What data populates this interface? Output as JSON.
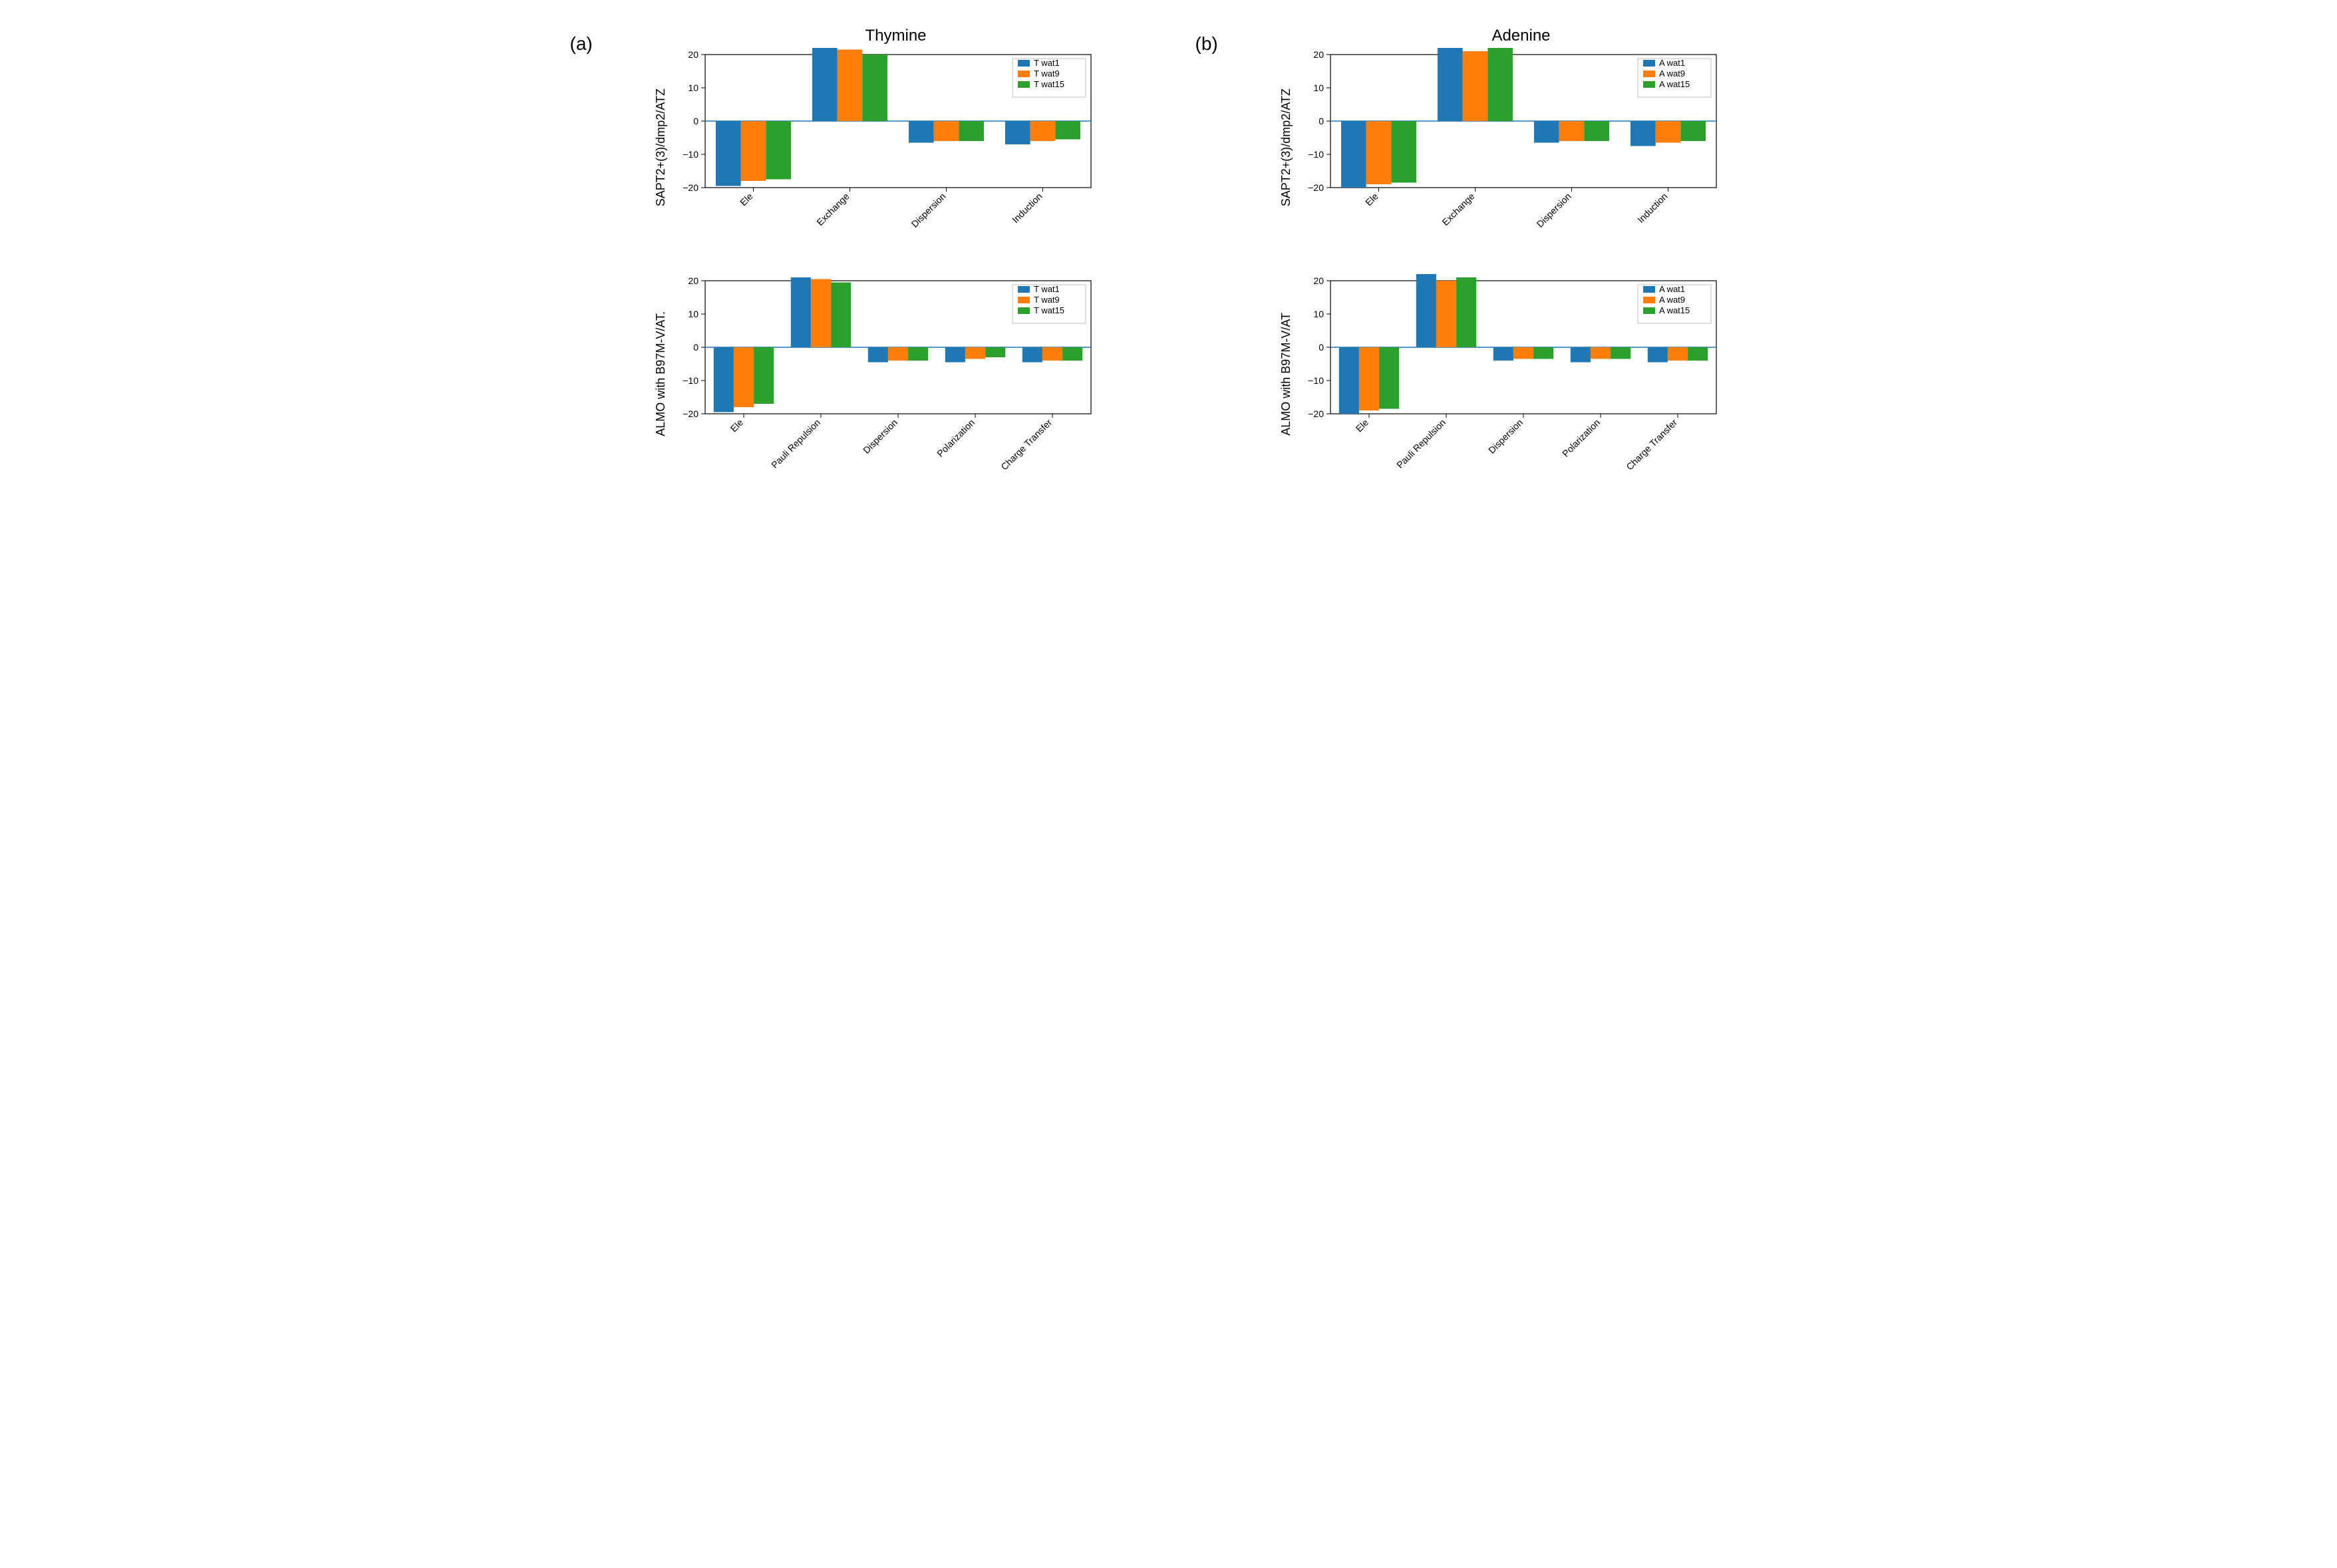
{
  "palette": {
    "series1": "#1f77b4",
    "series2": "#ff7f0e",
    "series3": "#2ca02c",
    "axis": "#000000",
    "zero_line": "#1f77b4",
    "frame": "#000000",
    "background": "#ffffff",
    "text": "#000000"
  },
  "typography": {
    "title_fontsize": 24,
    "axis_label_fontsize": 18,
    "tick_fontsize": 14,
    "legend_fontsize": 13,
    "panel_label_fontsize": 28,
    "font_family": "Arial"
  },
  "layout": {
    "bar_width": 0.26,
    "group_gap": 0.2,
    "tick_rotation_deg": 45,
    "legend_position": "upper-right"
  },
  "panels": {
    "a": {
      "label": "(a)",
      "title": "Thymine",
      "charts": [
        {
          "id": "thymine-sapt",
          "ylabel": "SAPT2+(3)/dmp2/ATZ",
          "ylim": [
            -20,
            20
          ],
          "ytick_step": 10,
          "categories": [
            "Ele",
            "Exchange",
            "Dispersion",
            "Induction"
          ],
          "series": [
            {
              "name": "T wat1",
              "color_key": "series1",
              "values": [
                -19.5,
                22.0,
                -6.5,
                -7.0
              ]
            },
            {
              "name": "T wat9",
              "color_key": "series2",
              "values": [
                -18.0,
                21.5,
                -6.0,
                -6.0
              ]
            },
            {
              "name": "T wat15",
              "color_key": "series3",
              "values": [
                -17.5,
                20.0,
                -6.0,
                -5.5
              ]
            }
          ]
        },
        {
          "id": "thymine-almo",
          "ylabel": "ALMO with B97M-V/AT.",
          "ylim": [
            -20,
            20
          ],
          "ytick_step": 10,
          "categories": [
            "Ele",
            "Pauli Repulsion",
            "Dispersion",
            "Polarization",
            "Charge Transfer"
          ],
          "series": [
            {
              "name": "T wat1",
              "color_key": "series1",
              "values": [
                -19.5,
                21.0,
                -4.5,
                -4.5,
                -4.5
              ]
            },
            {
              "name": "T wat9",
              "color_key": "series2",
              "values": [
                -18.0,
                20.5,
                -4.0,
                -3.5,
                -4.0
              ]
            },
            {
              "name": "T wat15",
              "color_key": "series3",
              "values": [
                -17.0,
                19.5,
                -4.0,
                -3.0,
                -4.0
              ]
            }
          ]
        }
      ]
    },
    "b": {
      "label": "(b)",
      "title": "Adenine",
      "charts": [
        {
          "id": "adenine-sapt",
          "ylabel": "SAPT2+(3)/dmp2/ATZ",
          "ylim": [
            -20,
            20
          ],
          "ytick_step": 10,
          "categories": [
            "Ele",
            "Exchange",
            "Dispersion",
            "Induction"
          ],
          "series": [
            {
              "name": "A wat1",
              "color_key": "series1",
              "values": [
                -20.0,
                23.5,
                -6.5,
                -7.5
              ]
            },
            {
              "name": "A wat9",
              "color_key": "series2",
              "values": [
                -19.0,
                21.0,
                -6.0,
                -6.5
              ]
            },
            {
              "name": "A wat15",
              "color_key": "series3",
              "values": [
                -18.5,
                22.0,
                -6.0,
                -6.0
              ]
            }
          ]
        },
        {
          "id": "adenine-almo",
          "ylabel": "ALMO with B97M-V/AT",
          "ylim": [
            -20,
            20
          ],
          "ytick_step": 10,
          "categories": [
            "Ele",
            "Pauli Repulsion",
            "Dispersion",
            "Polarization",
            "Charge Transfer"
          ],
          "series": [
            {
              "name": "A wat1",
              "color_key": "series1",
              "values": [
                -20.0,
                22.5,
                -4.0,
                -4.5,
                -4.5
              ]
            },
            {
              "name": "A wat9",
              "color_key": "series2",
              "values": [
                -19.0,
                20.0,
                -3.5,
                -3.5,
                -4.0
              ]
            },
            {
              "name": "A wat15",
              "color_key": "series3",
              "values": [
                -18.5,
                21.0,
                -3.5,
                -3.5,
                -4.0
              ]
            }
          ]
        }
      ]
    }
  }
}
